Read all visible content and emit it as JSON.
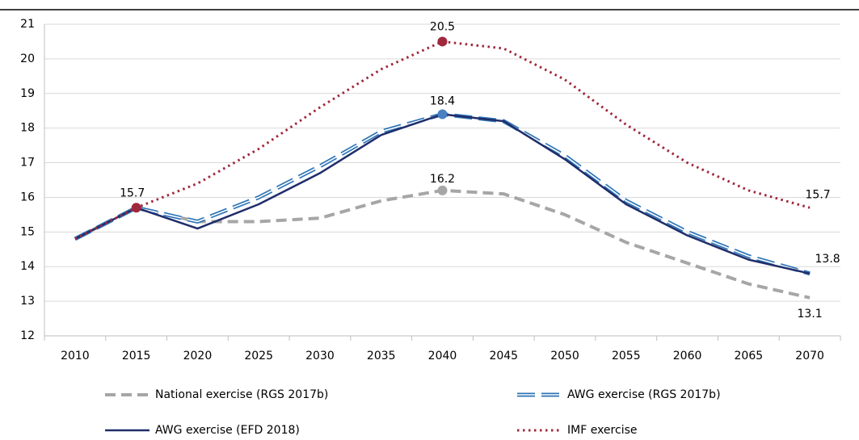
{
  "chart_data": {
    "type": "line",
    "categories": [
      "2010",
      "2015",
      "2020",
      "2025",
      "2030",
      "2035",
      "2040",
      "2045",
      "2050",
      "2055",
      "2060",
      "2065",
      "2070"
    ],
    "ylim": [
      12,
      21
    ],
    "yticks": [
      12,
      13,
      14,
      15,
      16,
      17,
      18,
      19,
      20,
      21
    ],
    "grid": true,
    "series": [
      {
        "name": "National exercise (RGS 2017b)",
        "color": "#a6a6a6",
        "values": [
          14.8,
          15.7,
          15.3,
          15.3,
          15.4,
          15.9,
          16.2,
          16.1,
          15.5,
          14.7,
          14.1,
          13.5,
          13.1
        ]
      },
      {
        "name": "AWG exercise (RGS 2017b)",
        "color": "#5b9bd5",
        "values": [
          14.8,
          15.7,
          15.3,
          16.0,
          16.9,
          17.9,
          18.4,
          18.2,
          17.2,
          15.9,
          15.0,
          14.3,
          13.8
        ]
      },
      {
        "name": "AWG exercise (EFD 2018)",
        "color": "#1f2d6b",
        "values": [
          14.8,
          15.7,
          15.1,
          15.8,
          16.7,
          17.8,
          18.4,
          18.2,
          17.1,
          15.8,
          14.9,
          14.2,
          13.8
        ]
      },
      {
        "name": "IMF exercise",
        "color": "#a0283c",
        "values": [
          14.8,
          15.7,
          16.4,
          17.4,
          18.6,
          19.7,
          20.5,
          20.3,
          19.4,
          18.1,
          17.0,
          16.2,
          15.7
        ]
      }
    ]
  }
}
